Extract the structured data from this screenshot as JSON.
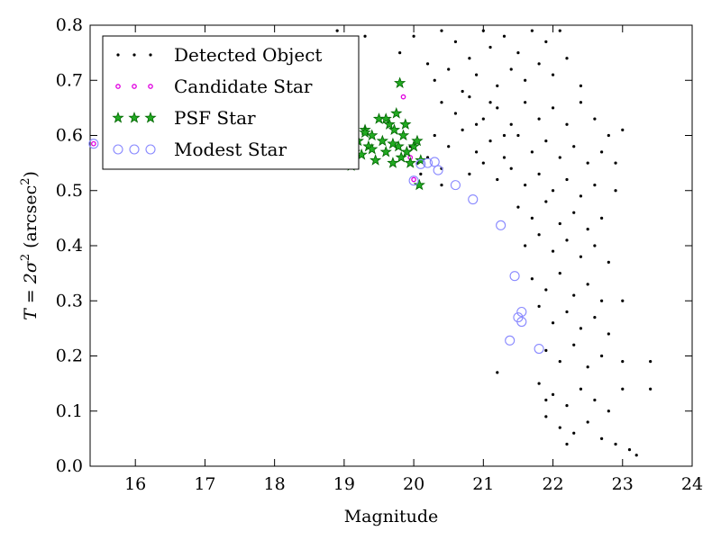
{
  "chart_data": {
    "type": "scatter",
    "xlabel": "Magnitude",
    "ylabel_prefix": "T = 2σ",
    "ylabel_sup1": "2",
    "ylabel_paren": "(arcsec",
    "ylabel_sup2": "2",
    "ylabel_close": ")",
    "xlim": [
      15.35,
      24.0
    ],
    "ylim": [
      0.0,
      0.8
    ],
    "xticks": [
      16,
      17,
      18,
      19,
      20,
      21,
      22,
      23,
      24
    ],
    "xtick_labels": [
      "16",
      "17",
      "18",
      "19",
      "20",
      "21",
      "22",
      "23",
      "24"
    ],
    "yticks": [
      0.0,
      0.1,
      0.2,
      0.3,
      0.4,
      0.5,
      0.6,
      0.7,
      0.8
    ],
    "ytick_labels": [
      "0.0",
      "0.1",
      "0.2",
      "0.3",
      "0.4",
      "0.5",
      "0.6",
      "0.7",
      "0.8"
    ],
    "grid": false,
    "legend_position": "top-left",
    "colors": {
      "detected": "#000000",
      "candidate": "#e000e0",
      "psf_fill": "#22aa22",
      "psf_edge": "#006600",
      "modest": "#8888ff"
    },
    "series": [
      {
        "name": "Detected Object",
        "marker": "dot",
        "points": [
          [
            18.9,
            0.79
          ],
          [
            19.0,
            0.76
          ],
          [
            19.3,
            0.78
          ],
          [
            19.8,
            0.75
          ],
          [
            20.0,
            0.78
          ],
          [
            20.2,
            0.73
          ],
          [
            20.4,
            0.79
          ],
          [
            20.6,
            0.77
          ],
          [
            20.8,
            0.74
          ],
          [
            21.0,
            0.79
          ],
          [
            21.1,
            0.76
          ],
          [
            21.3,
            0.78
          ],
          [
            21.5,
            0.75
          ],
          [
            21.7,
            0.79
          ],
          [
            21.9,
            0.77
          ],
          [
            22.1,
            0.79
          ],
          [
            20.3,
            0.7
          ],
          [
            20.5,
            0.72
          ],
          [
            20.7,
            0.68
          ],
          [
            20.9,
            0.71
          ],
          [
            21.2,
            0.69
          ],
          [
            21.4,
            0.72
          ],
          [
            21.6,
            0.7
          ],
          [
            21.8,
            0.73
          ],
          [
            22.0,
            0.71
          ],
          [
            22.2,
            0.74
          ],
          [
            22.4,
            0.69
          ],
          [
            20.4,
            0.66
          ],
          [
            20.6,
            0.64
          ],
          [
            20.8,
            0.67
          ],
          [
            21.0,
            0.63
          ],
          [
            21.2,
            0.65
          ],
          [
            21.4,
            0.62
          ],
          [
            21.6,
            0.66
          ],
          [
            21.8,
            0.63
          ],
          [
            22.0,
            0.65
          ],
          [
            22.2,
            0.62
          ],
          [
            22.4,
            0.66
          ],
          [
            22.6,
            0.63
          ],
          [
            22.8,
            0.6
          ],
          [
            20.3,
            0.6
          ],
          [
            20.5,
            0.58
          ],
          [
            20.7,
            0.61
          ],
          [
            20.9,
            0.57
          ],
          [
            21.1,
            0.59
          ],
          [
            21.3,
            0.56
          ],
          [
            21.5,
            0.6
          ],
          [
            21.7,
            0.57
          ],
          [
            21.9,
            0.59
          ],
          [
            22.1,
            0.56
          ],
          [
            22.3,
            0.58
          ],
          [
            22.5,
            0.55
          ],
          [
            22.7,
            0.57
          ],
          [
            23.0,
            0.61
          ],
          [
            20.4,
            0.54
          ],
          [
            20.8,
            0.53
          ],
          [
            21.0,
            0.55
          ],
          [
            21.2,
            0.52
          ],
          [
            21.4,
            0.54
          ],
          [
            21.6,
            0.51
          ],
          [
            21.8,
            0.53
          ],
          [
            22.0,
            0.5
          ],
          [
            22.2,
            0.52
          ],
          [
            22.4,
            0.49
          ],
          [
            22.6,
            0.51
          ],
          [
            22.9,
            0.5
          ],
          [
            21.5,
            0.47
          ],
          [
            21.7,
            0.45
          ],
          [
            21.9,
            0.48
          ],
          [
            22.1,
            0.44
          ],
          [
            22.3,
            0.46
          ],
          [
            22.5,
            0.43
          ],
          [
            22.7,
            0.45
          ],
          [
            21.6,
            0.4
          ],
          [
            21.8,
            0.42
          ],
          [
            22.0,
            0.39
          ],
          [
            22.2,
            0.41
          ],
          [
            22.4,
            0.38
          ],
          [
            22.6,
            0.4
          ],
          [
            22.8,
            0.37
          ],
          [
            21.7,
            0.34
          ],
          [
            21.9,
            0.32
          ],
          [
            22.1,
            0.35
          ],
          [
            22.3,
            0.31
          ],
          [
            22.5,
            0.33
          ],
          [
            22.7,
            0.3
          ],
          [
            21.2,
            0.17
          ],
          [
            21.8,
            0.29
          ],
          [
            22.0,
            0.26
          ],
          [
            22.2,
            0.28
          ],
          [
            22.4,
            0.25
          ],
          [
            22.6,
            0.27
          ],
          [
            22.8,
            0.24
          ],
          [
            21.9,
            0.21
          ],
          [
            22.1,
            0.19
          ],
          [
            22.3,
            0.22
          ],
          [
            22.5,
            0.18
          ],
          [
            22.7,
            0.2
          ],
          [
            23.0,
            0.19
          ],
          [
            23.4,
            0.19
          ],
          [
            21.8,
            0.15
          ],
          [
            22.0,
            0.13
          ],
          [
            22.2,
            0.11
          ],
          [
            22.4,
            0.14
          ],
          [
            22.6,
            0.12
          ],
          [
            22.8,
            0.1
          ],
          [
            23.0,
            0.14
          ],
          [
            23.4,
            0.14
          ],
          [
            21.9,
            0.09
          ],
          [
            22.1,
            0.07
          ],
          [
            22.3,
            0.06
          ],
          [
            22.5,
            0.08
          ],
          [
            22.7,
            0.05
          ],
          [
            22.9,
            0.04
          ],
          [
            23.1,
            0.03
          ],
          [
            23.2,
            0.02
          ],
          [
            22.2,
            0.04
          ],
          [
            21.9,
            0.12
          ],
          [
            20.1,
            0.53
          ],
          [
            20.2,
            0.56
          ],
          [
            20.4,
            0.51
          ],
          [
            19.95,
            0.58
          ],
          [
            20.05,
            0.55
          ],
          [
            21.3,
            0.6
          ],
          [
            21.1,
            0.66
          ],
          [
            20.9,
            0.62
          ],
          [
            22.9,
            0.55
          ],
          [
            23.0,
            0.3
          ]
        ]
      },
      {
        "name": "Candidate Star",
        "marker": "small-circle",
        "points": [
          [
            15.4,
            0.585
          ],
          [
            19.85,
            0.67
          ],
          [
            20.0,
            0.52
          ],
          [
            19.95,
            0.56
          ]
        ]
      },
      {
        "name": "PSF Star",
        "marker": "star",
        "points": [
          [
            19.1,
            0.545
          ],
          [
            19.15,
            0.57
          ],
          [
            19.2,
            0.59
          ],
          [
            19.25,
            0.565
          ],
          [
            19.3,
            0.61
          ],
          [
            19.35,
            0.58
          ],
          [
            19.4,
            0.6
          ],
          [
            19.45,
            0.555
          ],
          [
            19.5,
            0.63
          ],
          [
            19.55,
            0.59
          ],
          [
            19.6,
            0.57
          ],
          [
            19.65,
            0.62
          ],
          [
            19.7,
            0.55
          ],
          [
            19.72,
            0.61
          ],
          [
            19.75,
            0.64
          ],
          [
            19.78,
            0.58
          ],
          [
            19.8,
            0.695
          ],
          [
            19.82,
            0.56
          ],
          [
            19.85,
            0.6
          ],
          [
            19.88,
            0.62
          ],
          [
            19.9,
            0.57
          ],
          [
            19.95,
            0.55
          ],
          [
            20.0,
            0.58
          ],
          [
            20.05,
            0.59
          ],
          [
            20.08,
            0.51
          ],
          [
            20.1,
            0.555
          ],
          [
            19.6,
            0.63
          ],
          [
            19.4,
            0.575
          ],
          [
            19.3,
            0.605
          ],
          [
            19.7,
            0.585
          ]
        ]
      },
      {
        "name": "Modest Star",
        "marker": "open-circle",
        "points": [
          [
            15.4,
            0.585
          ],
          [
            15.9,
            0.578
          ],
          [
            16.2,
            0.575
          ],
          [
            20.0,
            0.518
          ],
          [
            20.1,
            0.548
          ],
          [
            20.2,
            0.55
          ],
          [
            20.3,
            0.552
          ],
          [
            20.35,
            0.537
          ],
          [
            20.6,
            0.51
          ],
          [
            20.85,
            0.484
          ],
          [
            21.25,
            0.437
          ],
          [
            21.45,
            0.345
          ],
          [
            21.5,
            0.27
          ],
          [
            21.55,
            0.28
          ],
          [
            21.55,
            0.262
          ],
          [
            21.38,
            0.228
          ],
          [
            21.8,
            0.213
          ]
        ]
      }
    ]
  }
}
